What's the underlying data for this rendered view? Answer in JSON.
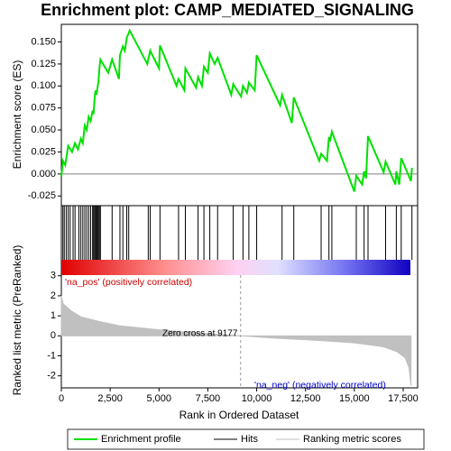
{
  "chart_data": {
    "type": "enrichment",
    "title": "Enrichment plot: CAMP_MEDIATED_SIGNALING",
    "xlabel": "Rank in Ordered Dataset",
    "xlim": [
      0,
      18240
    ],
    "xticks": [
      0,
      {
        "value": 2500,
        "label": "2,500"
      },
      {
        "value": 5000,
        "label": "5,000"
      },
      {
        "value": 7500,
        "label": "7,500"
      },
      {
        "value": 10000,
        "label": "10,000"
      },
      {
        "value": 12500,
        "label": "12,500"
      },
      {
        "value": 15000,
        "label": "15,000"
      },
      {
        "value": 17500,
        "label": "17,500"
      }
    ],
    "es": {
      "ylabel": "Enrichment score (ES)",
      "name": "Enrichment profile",
      "color": "#00e000",
      "ylim": [
        -0.036,
        0.17
      ],
      "yticks": [
        -0.025,
        {
          "value": 0,
          "label": "0.000"
        },
        0.025,
        {
          "value": 0.05,
          "label": "0.050"
        },
        0.075,
        {
          "value": 0.1,
          "label": "0.100"
        },
        0.125,
        {
          "value": 0.15,
          "label": "0.150"
        }
      ],
      "x": [
        0,
        80,
        200,
        350,
        550,
        700,
        850,
        1000,
        1100,
        1200,
        1300,
        1400,
        1500,
        1600,
        1650,
        1700,
        1750,
        1800,
        1900,
        1950,
        2000,
        2400,
        2600,
        2950,
        3000,
        3150,
        3250,
        3350,
        3450,
        3500,
        4400,
        4450,
        4550,
        5000,
        5050,
        5900,
        6000,
        6300,
        6350,
        6900,
        7000,
        7200,
        7300,
        7500,
        7600,
        7850,
        8000,
        8700,
        8800,
        9200,
        9300,
        9500,
        9600,
        9900,
        10000,
        11200,
        11300,
        11800,
        11900,
        13200,
        13300,
        13600,
        13700,
        13750,
        13850,
        15000,
        15100,
        15400,
        15500,
        15600,
        15700,
        16500,
        16600,
        17100,
        17150,
        17300,
        17400,
        17900,
        17950
      ],
      "values": [
        -0.003,
        0.015,
        0.01,
        0.032,
        0.025,
        0.035,
        0.028,
        0.04,
        0.035,
        0.055,
        0.05,
        0.065,
        0.06,
        0.072,
        0.068,
        0.085,
        0.095,
        0.09,
        0.105,
        0.12,
        0.13,
        0.115,
        0.13,
        0.108,
        0.135,
        0.145,
        0.14,
        0.155,
        0.16,
        0.163,
        0.125,
        0.13,
        0.14,
        0.12,
        0.146,
        0.1,
        0.108,
        0.095,
        0.12,
        0.098,
        0.11,
        0.1,
        0.122,
        0.115,
        0.137,
        0.125,
        0.132,
        0.09,
        0.102,
        0.088,
        0.1,
        0.092,
        0.104,
        0.095,
        0.135,
        0.078,
        0.09,
        0.058,
        0.087,
        0.015,
        0.023,
        0.015,
        0.042,
        0.037,
        0.048,
        -0.02,
        -0.002,
        -0.012,
        0.003,
        -0.005,
        0.043,
        0.002,
        0.014,
        -0.012,
        0.003,
        -0.012,
        0.018,
        -0.008,
        0.007
      ]
    },
    "hits": {
      "name": "Hits",
      "color": "#000000",
      "x": [
        80,
        150,
        250,
        350,
        450,
        600,
        700,
        900,
        1000,
        1100,
        1200,
        1300,
        1400,
        1500,
        1600,
        1650,
        1700,
        1750,
        1800,
        1850,
        1900,
        1950,
        2000,
        2600,
        3000,
        3150,
        3350,
        3450,
        4450,
        4550,
        5050,
        6000,
        6350,
        7000,
        7300,
        7600,
        8000,
        8800,
        9300,
        9600,
        10000,
        11300,
        11900,
        13300,
        13700,
        13850,
        15100,
        15500,
        15700,
        16600,
        17150,
        17400,
        17950
      ]
    },
    "metric": {
      "ylabel": "Ranked list metric (PreRanked)",
      "name": "Ranking metric scores",
      "color": "#c0c0c0",
      "ylim": [
        -2.6,
        3.8
      ],
      "yticks": [
        -2,
        -1,
        0,
        1,
        2,
        3
      ],
      "x": [
        0,
        100,
        500,
        1000,
        2000,
        3000,
        5000,
        7000,
        9177,
        11000,
        13000,
        15000,
        16500,
        17200,
        17600,
        17800,
        17900
      ],
      "values": [
        2.0,
        1.6,
        1.25,
        0.95,
        0.7,
        0.5,
        0.3,
        0.15,
        0,
        -0.12,
        -0.22,
        -0.35,
        -0.55,
        -0.8,
        -1.1,
        -1.6,
        -2.5
      ],
      "zero_cross": 9177,
      "zero_label": "Zero cross at 9177",
      "pos_label": "'na_pos' (positively correlated)",
      "neg_label": "'na_neg' (negatively correlated)"
    }
  }
}
